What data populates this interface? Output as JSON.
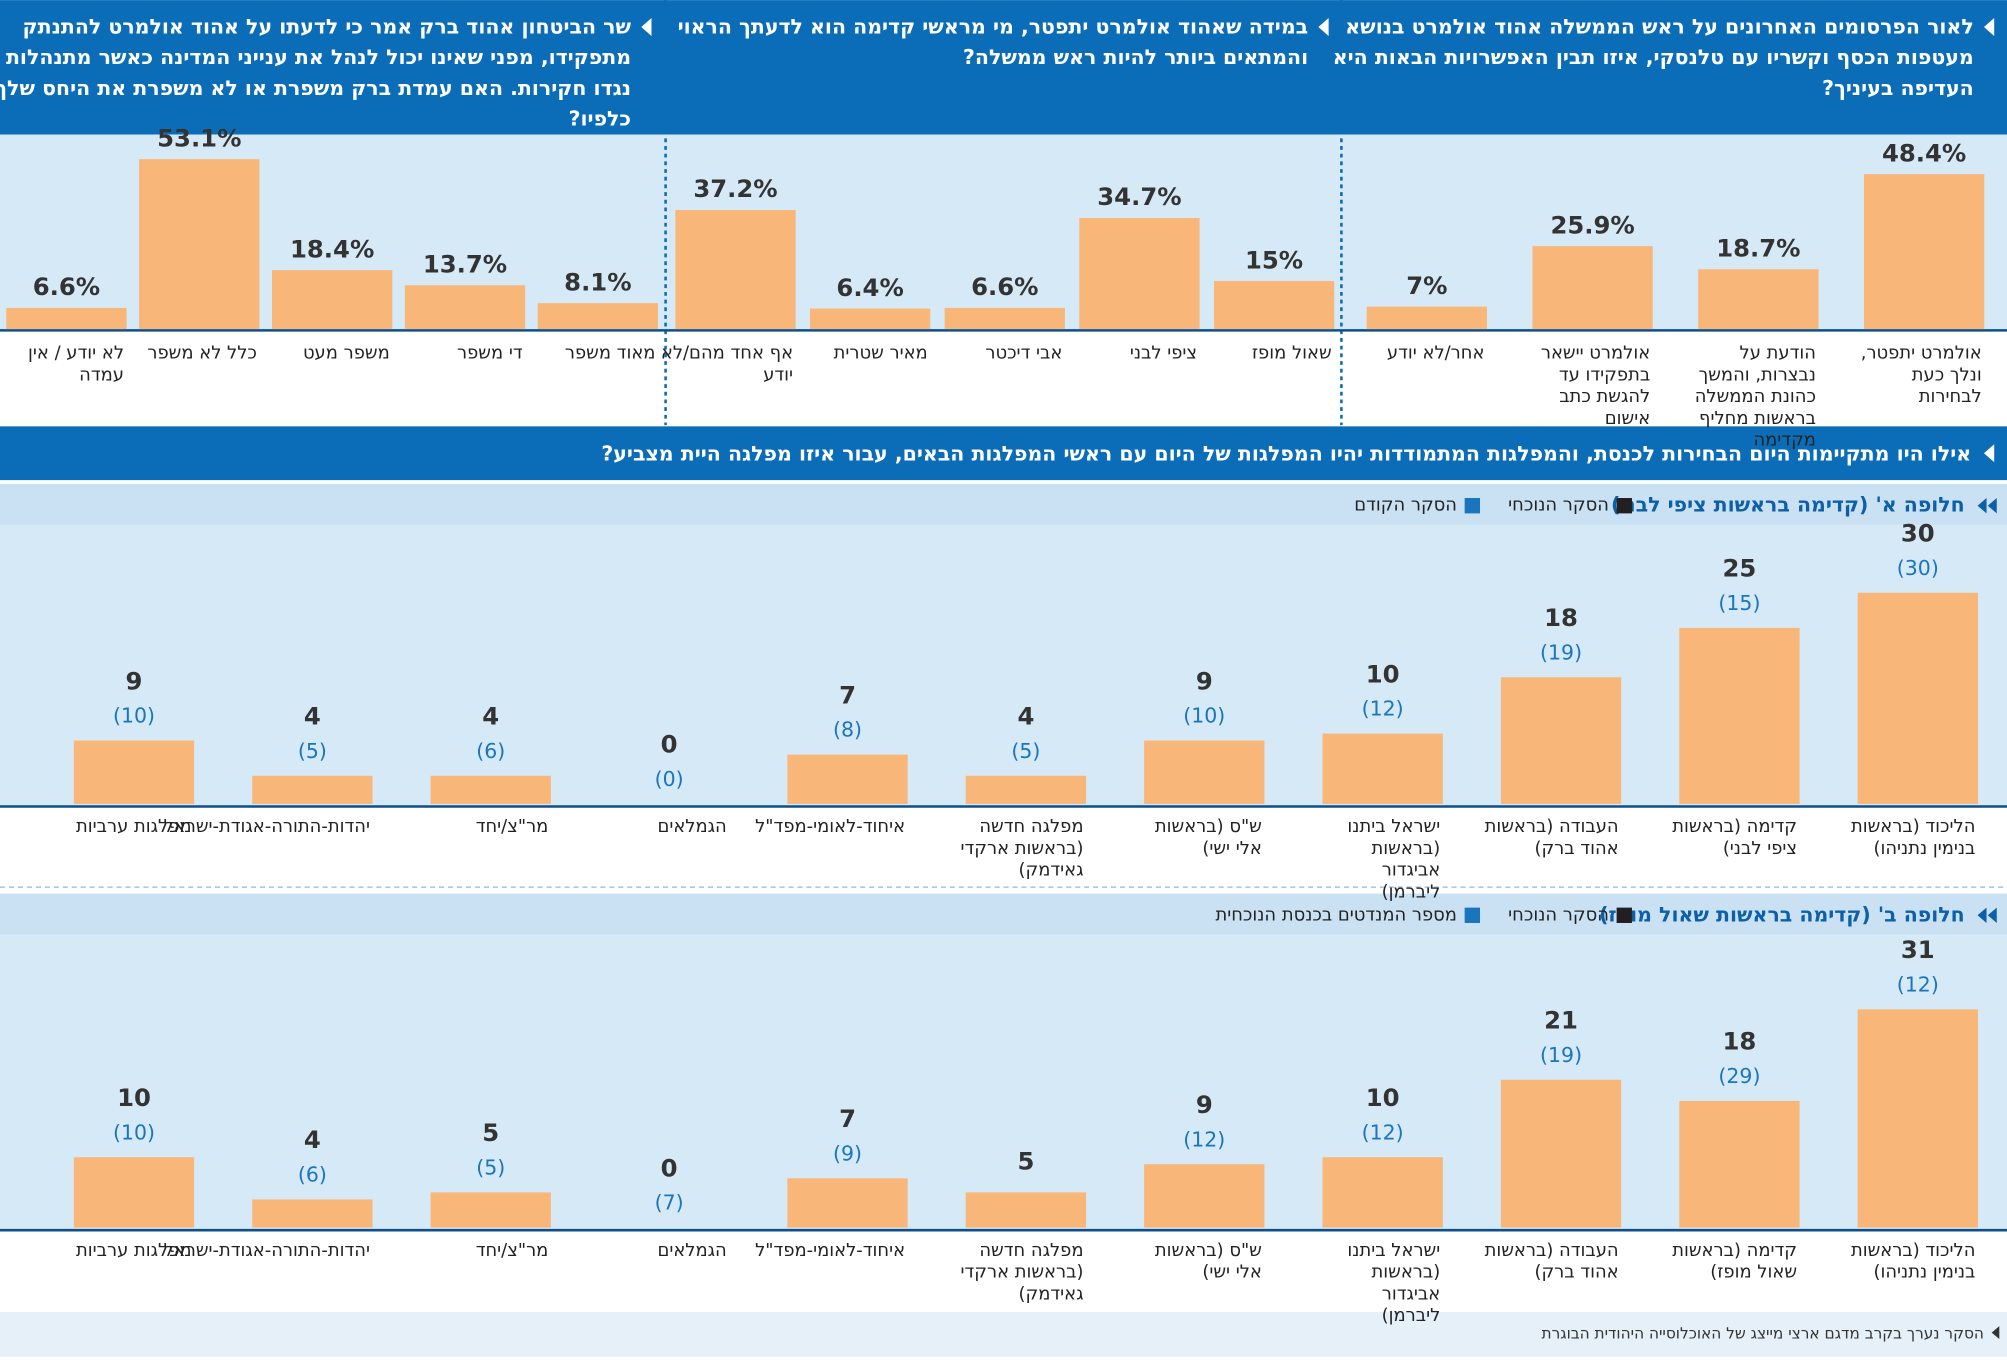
{
  "main_question": "אילו היו מתקיימות היום הבחירות לכנסת, והמפלגות המתמודדות יהיו המפלגות של היום עם ראשי המפלגות הבאים, עבור איזו מפלגה היית מצביע?",
  "footer": "הסקר נערך בקרב מדגם ארצי מייצג של האוכלוסייה היהודית הבוגרת",
  "chart_data": [
    {
      "type": "bar",
      "title": "לאור הפרסומים האחרונים על ראש הממשלה אהוד אולמרט בנושא מעטפות הכסף וקשריו עם טלנסקי, איזו תבין האפשרויות הבאות היא העדיפה בעיניך?",
      "categories": [
        "אולמרט יתפטר, ונלך כעת לבחירות",
        "הודעת על נבצרות, והמשך כהונת הממשלה בראשות מחליף מקדימה",
        "אולמרט יישאר בתפקידו עד להגשת כתב אישום",
        "אחר/לא יודע"
      ],
      "values": [
        48.4,
        18.7,
        25.9,
        7
      ],
      "value_labels": [
        "48.4%",
        "18.7%",
        "25.9%",
        "7%"
      ],
      "color": "#f9b679"
    },
    {
      "type": "bar",
      "title": "במידה שאהוד אולמרט יתפטר, מי מראשי קדימה הוא לדעתך הראוי והמתאים ביותר להיות ראש ממשלה?",
      "categories": [
        "שאול מופז",
        "ציפי לבני",
        "אבי דיכטר",
        "מאיר שטרית",
        "אף אחד מהם/לא יודע"
      ],
      "values": [
        15,
        34.7,
        6.6,
        6.4,
        37.2
      ],
      "value_labels": [
        "15%",
        "34.7%",
        "6.6%",
        "6.4%",
        "37.2%"
      ],
      "color": "#f9b679"
    },
    {
      "type": "bar",
      "title": "שר הביטחון אהוד ברק אמר כי לדעתו על אהוד אולמרט להתנתק מתפקידו, מפני שאינו יכול לנהל את ענייני המדינה כאשר מתנהלות נגדו חקירות. האם עמדת ברק משפרת או לא משפרת את היחס שלך כלפיו?",
      "categories": [
        "מאוד משפר",
        "די משפר",
        "משפר מעט",
        "כלל לא משפר",
        "לא יודע / אין עמדה"
      ],
      "values": [
        8.1,
        13.7,
        18.4,
        53.1,
        6.6
      ],
      "value_labels": [
        "8.1%",
        "13.7%",
        "18.4%",
        "53.1%",
        "6.6%"
      ],
      "color": "#f9b679"
    },
    {
      "type": "bar",
      "title": "חלופה א' (קדימה בראשות ציפי לבני)",
      "categories": [
        "הליכוד (בראשות בנימין נתניהו)",
        "קדימה (בראשות ציפי לבני)",
        "העבודה (בראשות אהוד ברק)",
        "ישראל ביתנו (בראשות אביגדור ליברמן)",
        "ש\"ס (בראשות אלי ישי)",
        "מפלגה חדשה (בראשות ארקדי גאידמק)",
        "איחוד-לאומי-מפד\"ל",
        "הגמלאים",
        "מר\"צ/יחד",
        "יהדות-התורה-אגודת-ישראל",
        "מפלגות ערביות"
      ],
      "color": "#f9b679",
      "series": [
        {
          "name": "הסקר הנוכחי",
          "color": "#231f20",
          "values": [
            30,
            25,
            18,
            10,
            9,
            4,
            7,
            0,
            4,
            4,
            9
          ]
        },
        {
          "name": "הסקר הקודם",
          "color": "#1b75bc",
          "values": [
            30,
            15,
            19,
            12,
            10,
            5,
            8,
            0,
            6,
            5,
            10
          ],
          "value_labels": [
            "(30)",
            "(15)",
            "(19)",
            "(12)",
            "(10)",
            "(5)",
            "(8)",
            "(0)",
            "(6)",
            "(5)",
            "(10)"
          ]
        }
      ]
    },
    {
      "type": "bar",
      "title": "חלופה ב' (קדימה בראשות שאול מופז)",
      "categories": [
        "הליכוד (בראשות בנימין נתניהו)",
        "קדימה (בראשות שאול מופז)",
        "העבודה (בראשות אהוד ברק)",
        "ישראל ביתנו (בראשות אביגדור ליברמן)",
        "ש\"ס (בראשות אלי ישי)",
        "מפלגה חדשה (בראשות ארקדי גאידמק)",
        "איחוד-לאומי-מפד\"ל",
        "הגמלאים",
        "מר\"צ/יחד",
        "יהדות-התורה-אגודת-ישראל",
        "מפלגות ערביות"
      ],
      "color": "#f9b679",
      "series": [
        {
          "name": "הסקר הנוכחי",
          "color": "#231f20",
          "values": [
            31,
            18,
            21,
            10,
            9,
            5,
            7,
            0,
            5,
            4,
            10
          ]
        },
        {
          "name": "מספר המנדטים בכנסת הנוכחית",
          "color": "#1b75bc",
          "values": [
            12,
            29,
            19,
            12,
            12,
            null,
            9,
            7,
            5,
            6,
            10
          ],
          "value_labels": [
            "(12)",
            "(29)",
            "(19)",
            "(12)",
            "(12)",
            null,
            "(9)",
            "(7)",
            "(5)",
            "(6)",
            "(10)"
          ]
        }
      ]
    }
  ]
}
